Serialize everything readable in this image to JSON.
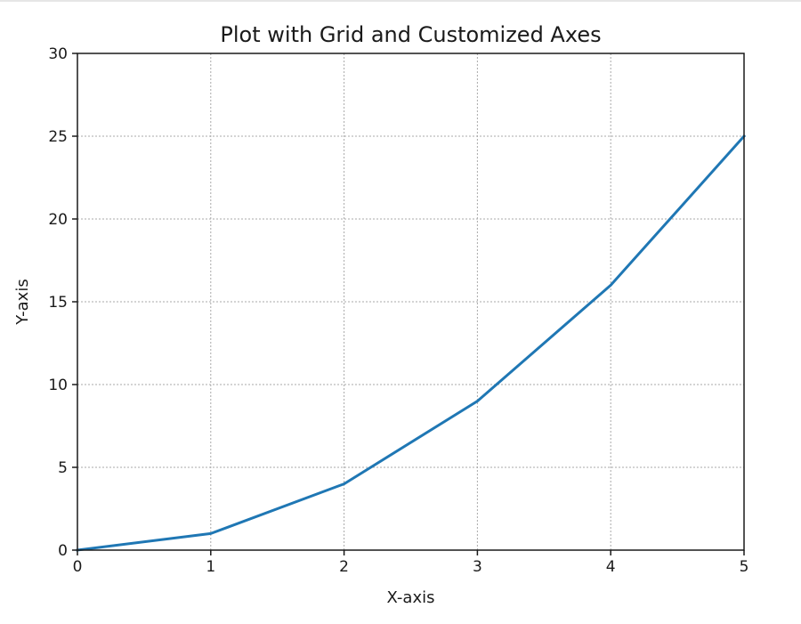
{
  "chart_data": {
    "type": "line",
    "title": "Plot with Grid and Customized Axes",
    "xlabel": "X-axis",
    "ylabel": "Y-axis",
    "xlim": [
      0,
      5
    ],
    "ylim": [
      0,
      30
    ],
    "xticks": [
      0,
      1,
      2,
      3,
      4,
      5
    ],
    "yticks": [
      0,
      5,
      10,
      15,
      20,
      25,
      30
    ],
    "grid": true,
    "series": [
      {
        "x": [
          0,
          1,
          2,
          3,
          4,
          5
        ],
        "y": [
          0,
          1,
          4,
          9,
          16,
          25
        ],
        "color": "#1f77b4"
      }
    ]
  }
}
